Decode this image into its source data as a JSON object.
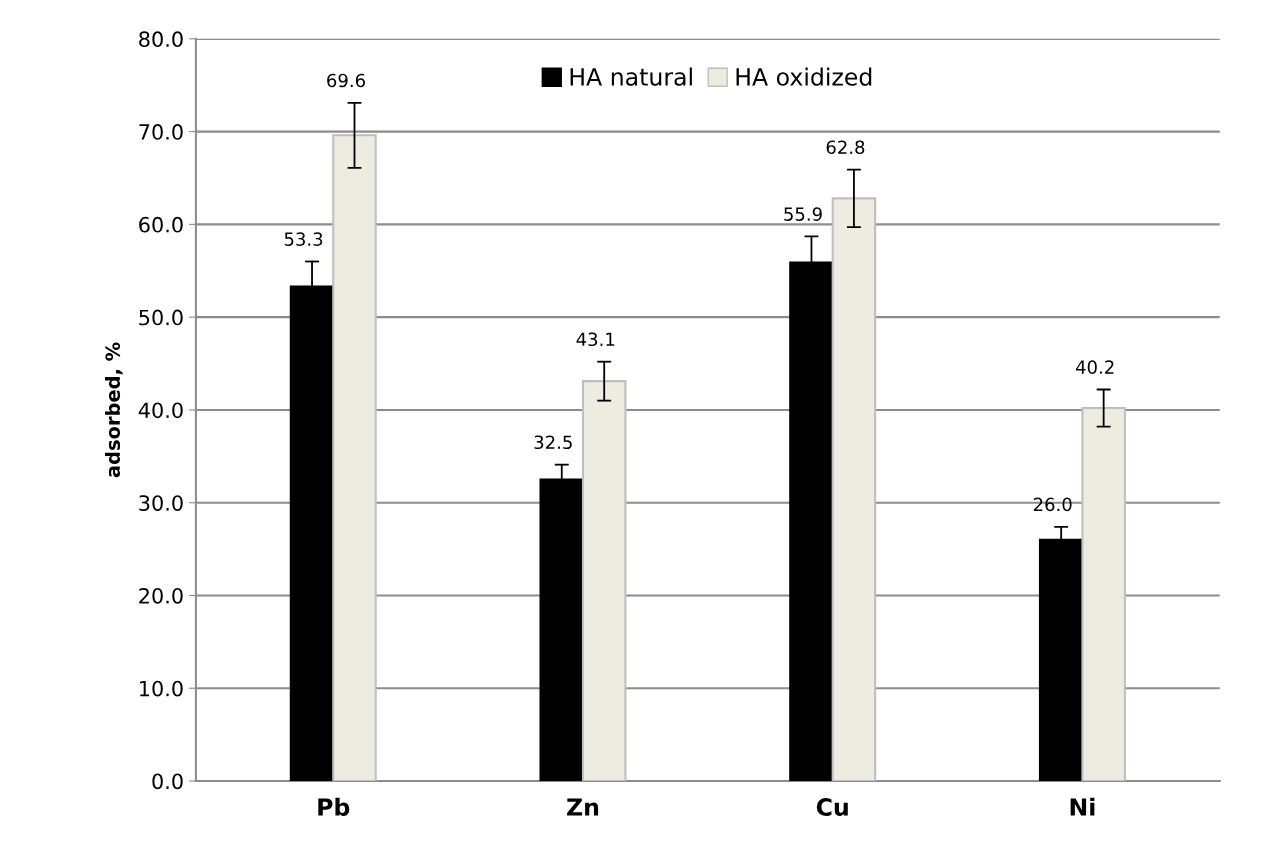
{
  "chart_data": {
    "type": "bar",
    "ylabel": "adsorbed, %",
    "categories": [
      "Pb",
      "Zn",
      "Cu",
      "Ni"
    ],
    "series": [
      {
        "name": "HA natural",
        "color": "#000000",
        "values": [
          53.3,
          32.5,
          55.9,
          26.0
        ],
        "value_labels": [
          "53.3",
          "32.5",
          "55.9",
          "26.0"
        ],
        "errors": [
          2.7,
          1.6,
          2.8,
          1.4
        ]
      },
      {
        "name": "HA oxidized",
        "color": "#eeece1",
        "values": [
          69.6,
          43.1,
          62.8,
          40.2
        ],
        "value_labels": [
          "69.6",
          "43.1",
          "62.8",
          "40.2"
        ],
        "errors": [
          3.5,
          2.1,
          3.1,
          2.0
        ]
      }
    ],
    "ylim": [
      0,
      80
    ],
    "yticks": [
      {
        "value": 0,
        "label": "0.0"
      },
      {
        "value": 10,
        "label": "10.0"
      },
      {
        "value": 20,
        "label": "20.0"
      },
      {
        "value": 30,
        "label": "30.0"
      },
      {
        "value": 40,
        "label": "40.0"
      },
      {
        "value": 50,
        "label": "50.0"
      },
      {
        "value": 60,
        "label": "60.0"
      },
      {
        "value": 70,
        "label": "70.0"
      },
      {
        "value": 80,
        "label": "80.0"
      }
    ],
    "grid": "y",
    "legend": "top"
  }
}
